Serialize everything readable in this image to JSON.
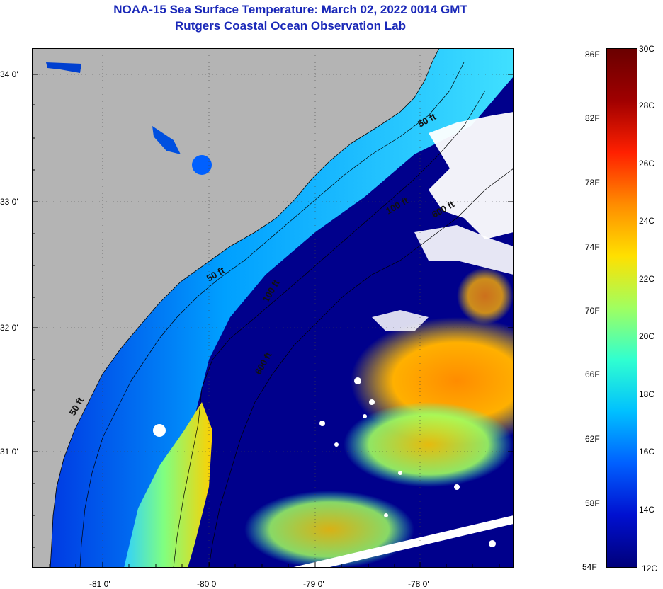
{
  "header": {
    "title": "NOAA-15 Sea Surface Temperature:  March 02, 2022 0014 GMT",
    "subtitle": "Rutgers Coastal Ocean Observation Lab"
  },
  "map": {
    "lat_labels": [
      "34 0'",
      "33 0'",
      "32 0'",
      "31 0'"
    ],
    "lon_labels": [
      "-81 0'",
      "-80 0'",
      "-79 0'",
      "-78 0'"
    ],
    "depth_contours": [
      "50 ft",
      "50 ft",
      "50 ft",
      "100 ft",
      "100 ft",
      "600 ft",
      "600 ft"
    ],
    "colors": {
      "land": "#b4b4b4",
      "cold_water": "#00008c",
      "warm_water": "#ff9900",
      "cloud": "#ffffff"
    }
  },
  "colorbar": {
    "fahrenheit": [
      "86F",
      "82F",
      "78F",
      "74F",
      "70F",
      "66F",
      "62F",
      "58F",
      "54F"
    ],
    "celsius": [
      "30C",
      "28C",
      "26C",
      "24C",
      "22C",
      "20C",
      "18C",
      "16C",
      "14C",
      "12C"
    ],
    "range_c": [
      12,
      30
    ],
    "range_f": [
      54,
      86
    ],
    "colors": [
      "#00007a",
      "#0010d0",
      "#0060ff",
      "#00c0ff",
      "#30ffd0",
      "#a0ff60",
      "#ffe000",
      "#ff8c00",
      "#ff2000",
      "#a00000",
      "#6a0000"
    ]
  }
}
